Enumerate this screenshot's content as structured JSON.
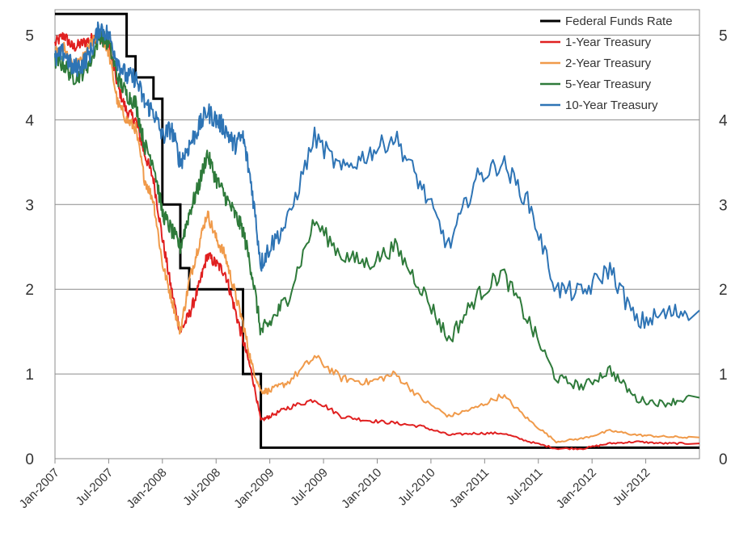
{
  "chart_data": {
    "type": "line",
    "title": "",
    "xlabel": "",
    "ylabel": "",
    "grid": true,
    "legend_position": "top-right",
    "x_range": [
      "2007-01",
      "2012-12"
    ],
    "ylim": [
      0,
      5.3
    ],
    "y_ticks": [
      0,
      1,
      2,
      3,
      4,
      5
    ],
    "y_tick_labels_left": [
      "0",
      "1",
      "2",
      "3",
      "4",
      "5"
    ],
    "y_tick_labels_right": [
      "0",
      "1",
      "2",
      "3",
      "4",
      "5"
    ],
    "x_ticks": [
      "2007-01",
      "2007-07",
      "2008-01",
      "2008-07",
      "2009-01",
      "2009-07",
      "2010-01",
      "2010-07",
      "2011-01",
      "2011-07",
      "2012-01",
      "2012-07"
    ],
    "x_tick_labels": [
      "Jan-2007",
      "Jul-2007",
      "Jan-2008",
      "Jul-2008",
      "Jan-2009",
      "Jul-2009",
      "Jan-2010",
      "Jul-2010",
      "Jan-2011",
      "Jul-2011",
      "Jan-2012",
      "Jul-2012"
    ],
    "series": [
      {
        "name": "Federal Funds Rate",
        "color": "#000000",
        "step": true,
        "points": [
          [
            "2007-01",
            5.25
          ],
          [
            "2007-09",
            4.75
          ],
          [
            "2007-10",
            4.5
          ],
          [
            "2007-12",
            4.25
          ],
          [
            "2008-01",
            3.5
          ],
          [
            "2008-01",
            3.0
          ],
          [
            "2008-03",
            2.25
          ],
          [
            "2008-04",
            2.0
          ],
          [
            "2008-10",
            1.5
          ],
          [
            "2008-10",
            1.0
          ],
          [
            "2008-12",
            0.13
          ],
          [
            "2012-12",
            0.13
          ]
        ]
      },
      {
        "name": "1-Year Treasury",
        "color": "#e02020",
        "points": [
          [
            "2007-01",
            4.9
          ],
          [
            "2007-02",
            5.0
          ],
          [
            "2007-03",
            4.85
          ],
          [
            "2007-04",
            4.9
          ],
          [
            "2007-05",
            4.95
          ],
          [
            "2007-06",
            5.0
          ],
          [
            "2007-07",
            4.9
          ],
          [
            "2007-08",
            4.4
          ],
          [
            "2007-09",
            4.1
          ],
          [
            "2007-10",
            4.0
          ],
          [
            "2007-11",
            3.6
          ],
          [
            "2007-12",
            3.3
          ],
          [
            "2008-01",
            2.6
          ],
          [
            "2008-02",
            2.0
          ],
          [
            "2008-03",
            1.5
          ],
          [
            "2008-04",
            1.7
          ],
          [
            "2008-05",
            2.0
          ],
          [
            "2008-06",
            2.4
          ],
          [
            "2008-07",
            2.3
          ],
          [
            "2008-08",
            2.2
          ],
          [
            "2008-09",
            1.8
          ],
          [
            "2008-10",
            1.4
          ],
          [
            "2008-11",
            1.0
          ],
          [
            "2008-12",
            0.45
          ],
          [
            "2009-01",
            0.5
          ],
          [
            "2009-03",
            0.6
          ],
          [
            "2009-06",
            0.7
          ],
          [
            "2009-09",
            0.5
          ],
          [
            "2009-12",
            0.45
          ],
          [
            "2010-03",
            0.42
          ],
          [
            "2010-06",
            0.38
          ],
          [
            "2010-09",
            0.28
          ],
          [
            "2010-12",
            0.3
          ],
          [
            "2011-03",
            0.3
          ],
          [
            "2011-06",
            0.2
          ],
          [
            "2011-09",
            0.12
          ],
          [
            "2011-12",
            0.12
          ],
          [
            "2012-03",
            0.18
          ],
          [
            "2012-06",
            0.2
          ],
          [
            "2012-09",
            0.18
          ],
          [
            "2012-12",
            0.18
          ]
        ]
      },
      {
        "name": "2-Year Treasury",
        "color": "#f09a4a",
        "points": [
          [
            "2007-01",
            4.8
          ],
          [
            "2007-02",
            4.85
          ],
          [
            "2007-03",
            4.6
          ],
          [
            "2007-04",
            4.7
          ],
          [
            "2007-05",
            4.9
          ],
          [
            "2007-06",
            5.0
          ],
          [
            "2007-07",
            4.8
          ],
          [
            "2007-08",
            4.2
          ],
          [
            "2007-09",
            4.0
          ],
          [
            "2007-10",
            3.9
          ],
          [
            "2007-11",
            3.3
          ],
          [
            "2007-12",
            3.05
          ],
          [
            "2008-01",
            2.3
          ],
          [
            "2008-02",
            1.9
          ],
          [
            "2008-03",
            1.5
          ],
          [
            "2008-04",
            2.1
          ],
          [
            "2008-05",
            2.5
          ],
          [
            "2008-06",
            2.9
          ],
          [
            "2008-07",
            2.6
          ],
          [
            "2008-08",
            2.4
          ],
          [
            "2008-09",
            2.0
          ],
          [
            "2008-10",
            1.6
          ],
          [
            "2008-11",
            1.1
          ],
          [
            "2008-12",
            0.8
          ],
          [
            "2009-01",
            0.8
          ],
          [
            "2009-03",
            0.9
          ],
          [
            "2009-06",
            1.2
          ],
          [
            "2009-09",
            0.95
          ],
          [
            "2009-12",
            0.9
          ],
          [
            "2010-03",
            1.0
          ],
          [
            "2010-06",
            0.7
          ],
          [
            "2010-09",
            0.5
          ],
          [
            "2010-12",
            0.6
          ],
          [
            "2011-03",
            0.75
          ],
          [
            "2011-06",
            0.45
          ],
          [
            "2011-09",
            0.2
          ],
          [
            "2011-12",
            0.24
          ],
          [
            "2012-03",
            0.33
          ],
          [
            "2012-06",
            0.28
          ],
          [
            "2012-09",
            0.26
          ],
          [
            "2012-12",
            0.25
          ]
        ]
      },
      {
        "name": "5-Year Treasury",
        "color": "#2e7a3a",
        "points": [
          [
            "2007-01",
            4.7
          ],
          [
            "2007-02",
            4.65
          ],
          [
            "2007-03",
            4.5
          ],
          [
            "2007-04",
            4.55
          ],
          [
            "2007-05",
            4.7
          ],
          [
            "2007-06",
            5.0
          ],
          [
            "2007-07",
            4.9
          ],
          [
            "2007-08",
            4.5
          ],
          [
            "2007-09",
            4.3
          ],
          [
            "2007-10",
            4.2
          ],
          [
            "2007-11",
            3.7
          ],
          [
            "2007-12",
            3.5
          ],
          [
            "2008-01",
            2.9
          ],
          [
            "2008-02",
            2.7
          ],
          [
            "2008-03",
            2.5
          ],
          [
            "2008-04",
            2.9
          ],
          [
            "2008-05",
            3.2
          ],
          [
            "2008-06",
            3.6
          ],
          [
            "2008-07",
            3.3
          ],
          [
            "2008-08",
            3.1
          ],
          [
            "2008-09",
            2.9
          ],
          [
            "2008-10",
            2.7
          ],
          [
            "2008-11",
            2.2
          ],
          [
            "2008-12",
            1.5
          ],
          [
            "2009-01",
            1.6
          ],
          [
            "2009-03",
            1.9
          ],
          [
            "2009-06",
            2.8
          ],
          [
            "2009-09",
            2.4
          ],
          [
            "2009-12",
            2.3
          ],
          [
            "2010-03",
            2.5
          ],
          [
            "2010-06",
            2.0
          ],
          [
            "2010-09",
            1.4
          ],
          [
            "2010-12",
            1.9
          ],
          [
            "2011-03",
            2.2
          ],
          [
            "2011-06",
            1.6
          ],
          [
            "2011-09",
            0.95
          ],
          [
            "2011-12",
            0.85
          ],
          [
            "2012-03",
            1.05
          ],
          [
            "2012-06",
            0.7
          ],
          [
            "2012-09",
            0.65
          ],
          [
            "2012-12",
            0.72
          ]
        ]
      },
      {
        "name": "10-Year Treasury",
        "color": "#2e74b5",
        "points": [
          [
            "2007-01",
            4.7
          ],
          [
            "2007-02",
            4.8
          ],
          [
            "2007-03",
            4.6
          ],
          [
            "2007-04",
            4.65
          ],
          [
            "2007-05",
            4.8
          ],
          [
            "2007-06",
            5.1
          ],
          [
            "2007-07",
            5.0
          ],
          [
            "2007-08",
            4.7
          ],
          [
            "2007-09",
            4.5
          ],
          [
            "2007-10",
            4.5
          ],
          [
            "2007-11",
            4.2
          ],
          [
            "2007-12",
            4.1
          ],
          [
            "2008-01",
            3.8
          ],
          [
            "2008-02",
            3.9
          ],
          [
            "2008-03",
            3.5
          ],
          [
            "2008-04",
            3.7
          ],
          [
            "2008-05",
            3.9
          ],
          [
            "2008-06",
            4.1
          ],
          [
            "2008-07",
            4.0
          ],
          [
            "2008-08",
            3.9
          ],
          [
            "2008-09",
            3.7
          ],
          [
            "2008-10",
            3.8
          ],
          [
            "2008-11",
            3.2
          ],
          [
            "2008-12",
            2.3
          ],
          [
            "2009-01",
            2.5
          ],
          [
            "2009-03",
            2.8
          ],
          [
            "2009-06",
            3.8
          ],
          [
            "2009-09",
            3.4
          ],
          [
            "2009-12",
            3.6
          ],
          [
            "2010-03",
            3.8
          ],
          [
            "2010-06",
            3.2
          ],
          [
            "2010-09",
            2.5
          ],
          [
            "2010-12",
            3.3
          ],
          [
            "2011-03",
            3.5
          ],
          [
            "2011-06",
            3.0
          ],
          [
            "2011-09",
            2.0
          ],
          [
            "2011-12",
            1.95
          ],
          [
            "2012-03",
            2.25
          ],
          [
            "2012-06",
            1.6
          ],
          [
            "2012-09",
            1.7
          ],
          [
            "2012-12",
            1.75
          ]
        ]
      }
    ]
  }
}
